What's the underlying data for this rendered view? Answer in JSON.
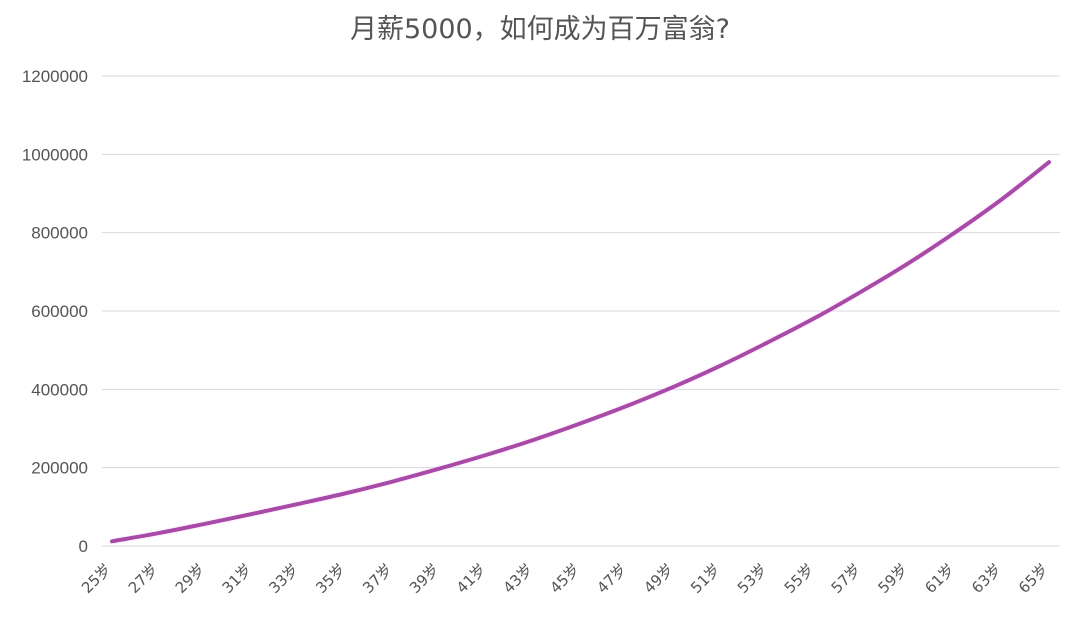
{
  "chart_data": {
    "type": "line",
    "title": "月薪5000，如何成为百万富翁?",
    "xlabel": "",
    "ylabel": "",
    "ylim": [
      0,
      1200000
    ],
    "yticks": [
      "0",
      "200000",
      "400000",
      "600000",
      "800000",
      "1000000",
      "1200000"
    ],
    "ytick_values": [
      0,
      200000,
      400000,
      600000,
      800000,
      1000000,
      1200000
    ],
    "categories": [
      "25岁",
      "27岁",
      "29岁",
      "31岁",
      "33岁",
      "35岁",
      "37岁",
      "39岁",
      "41岁",
      "43岁",
      "45岁",
      "47岁",
      "49岁",
      "51岁",
      "53岁",
      "55岁",
      "57岁",
      "59岁",
      "61岁",
      "63岁",
      "65岁"
    ],
    "grid": true,
    "legend": "none",
    "series": [
      {
        "color": "#b045b0",
        "values": [
          12000,
          33000,
          57000,
          82000,
          108000,
          135000,
          165000,
          198000,
          233000,
          271000,
          313000,
          358000,
          407000,
          461000,
          520000,
          582000,
          650000,
          722000,
          801000,
          886000,
          980000
        ]
      }
    ]
  }
}
